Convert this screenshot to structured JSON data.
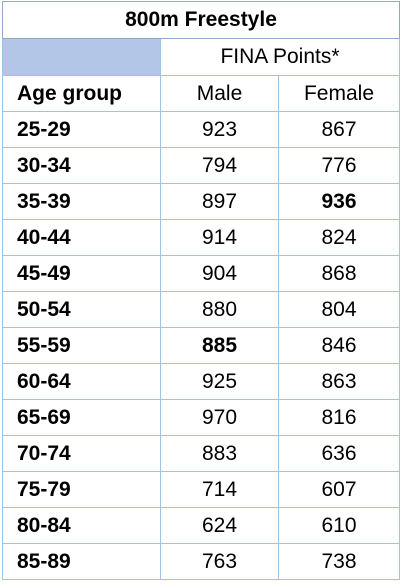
{
  "title": "800m Freestyle",
  "header": {
    "group": "FINA Points*",
    "columns": [
      "Age group",
      "Male",
      "Female"
    ]
  },
  "rows": [
    [
      "25-29",
      923,
      867
    ],
    [
      "30-34",
      794,
      776
    ],
    [
      "35-39",
      897,
      936
    ],
    [
      "40-44",
      914,
      824
    ],
    [
      "45-49",
      904,
      868
    ],
    [
      "50-54",
      880,
      804
    ],
    [
      "55-59",
      885,
      846
    ],
    [
      "60-64",
      925,
      863
    ],
    [
      "65-69",
      970,
      816
    ],
    [
      "70-74",
      883,
      636
    ],
    [
      "75-79",
      714,
      607
    ],
    [
      "80-84",
      624,
      610
    ],
    [
      "85-89",
      763,
      738
    ]
  ]
}
